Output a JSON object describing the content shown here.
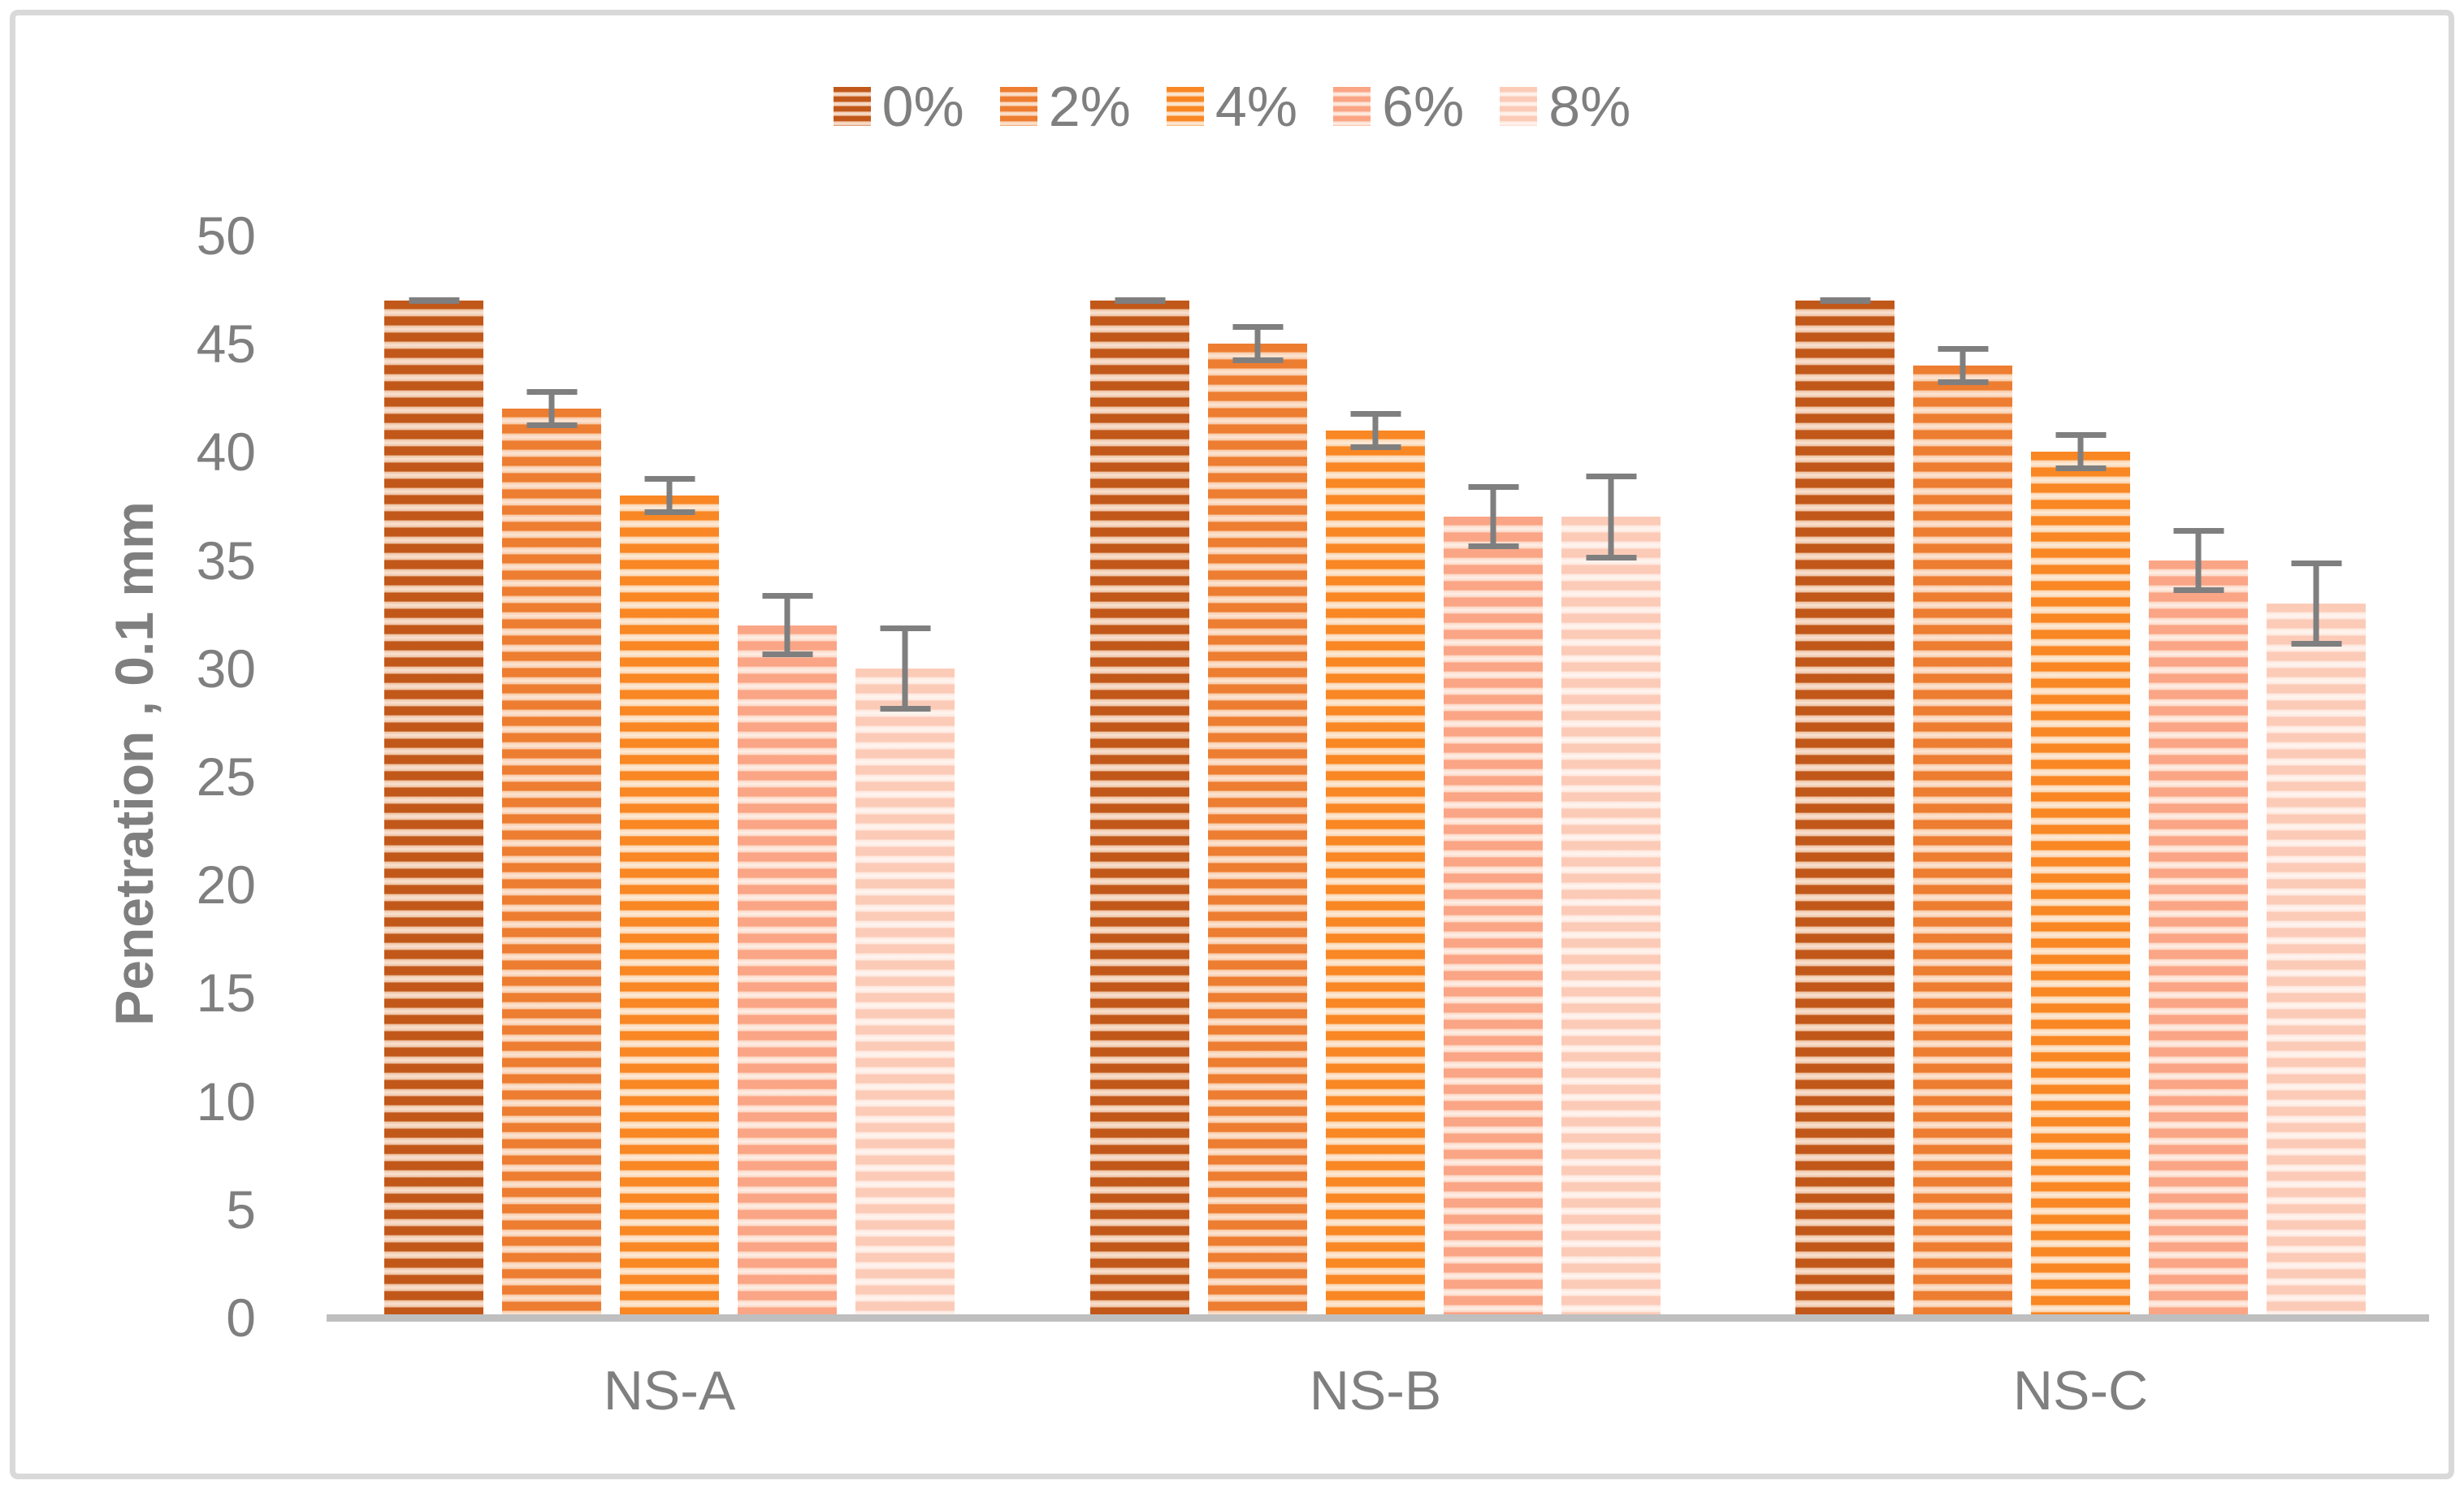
{
  "chart_data": {
    "type": "bar",
    "title": "",
    "categories": [
      "NS-A",
      "NS-B",
      "NS-C"
    ],
    "series": [
      {
        "name": "0%",
        "values": [
          47,
          47,
          47
        ],
        "error": 0.15
      },
      {
        "name": "2%",
        "values": [
          42,
          45,
          44
        ],
        "error": 0.9
      },
      {
        "name": "4%",
        "values": [
          38,
          41,
          40
        ],
        "error": 0.9
      },
      {
        "name": "6%",
        "values": [
          32,
          37,
          35
        ],
        "error": 1.5
      },
      {
        "name": "8%",
        "values": [
          30,
          37,
          33
        ],
        "error": 2.0
      }
    ],
    "xlabel": "",
    "ylabel": "Penetration , 0.1 mm",
    "ylim": [
      0,
      50
    ],
    "yticks": [
      0,
      5,
      10,
      15,
      20,
      25,
      30,
      35,
      40,
      45,
      50
    ],
    "grid": false,
    "legend_position": "top"
  },
  "style": {
    "text_color": "#7F7F7F",
    "axis_line_color": "#BFBFBF",
    "error_bar_color": "#7F7F7F",
    "frame_color": "#D9D9D9",
    "series_colors": [
      {
        "solid": "#C1581A",
        "edge": "#EFC3A4",
        "mid": "#F9E2D2"
      },
      {
        "solid": "#ED7D31",
        "edge": "#F9CBA9",
        "mid": "#FCE6D5"
      },
      {
        "solid": "#F98723",
        "edge": "#FCD4AE",
        "mid": "#FDEBD9"
      },
      {
        "solid": "#FAA585",
        "edge": "#FDD8C6",
        "mid": "#FEEFE7"
      },
      {
        "solid": "#FCCBB8",
        "edge": "#FEE8DF",
        "mid": "#FFF5F0"
      }
    ]
  }
}
